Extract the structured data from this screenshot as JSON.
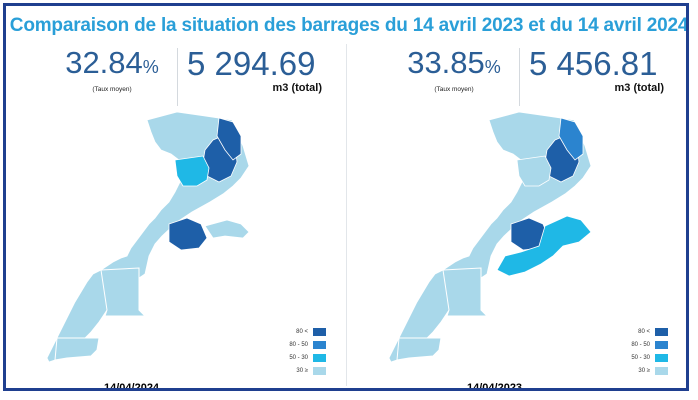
{
  "title": "Comparaison de la situation des barrages du 14 avril 2023 et du 14 avril 2024",
  "panels": [
    {
      "rate_value": "32.84",
      "rate_unit": "%",
      "rate_label": "(Taux moyen)",
      "total_value": "5 294.69",
      "total_label": "m3 (total)",
      "date": "14/04/2024"
    },
    {
      "rate_value": "33.85",
      "rate_unit": "%",
      "rate_label": "(Taux moyen)",
      "total_value": "5 456.81",
      "total_label": "m3 (total)",
      "date": "14/04/2023"
    }
  ],
  "legend": [
    {
      "label": "80 <",
      "color": "#1e5fa8"
    },
    {
      "label": "80 - 50",
      "color": "#2b84cf"
    },
    {
      "label": "50 - 30",
      "color": "#1fb8e6"
    },
    {
      "label": "30 ≥",
      "color": "#a9d8ea"
    }
  ],
  "colors": {
    "base": "#a9d8ea",
    "very_high": "#1e5fa8",
    "high": "#2b84cf",
    "medium": "#1fb8e6",
    "title": "#2a9fd8",
    "frame": "#1f3f8f"
  }
}
